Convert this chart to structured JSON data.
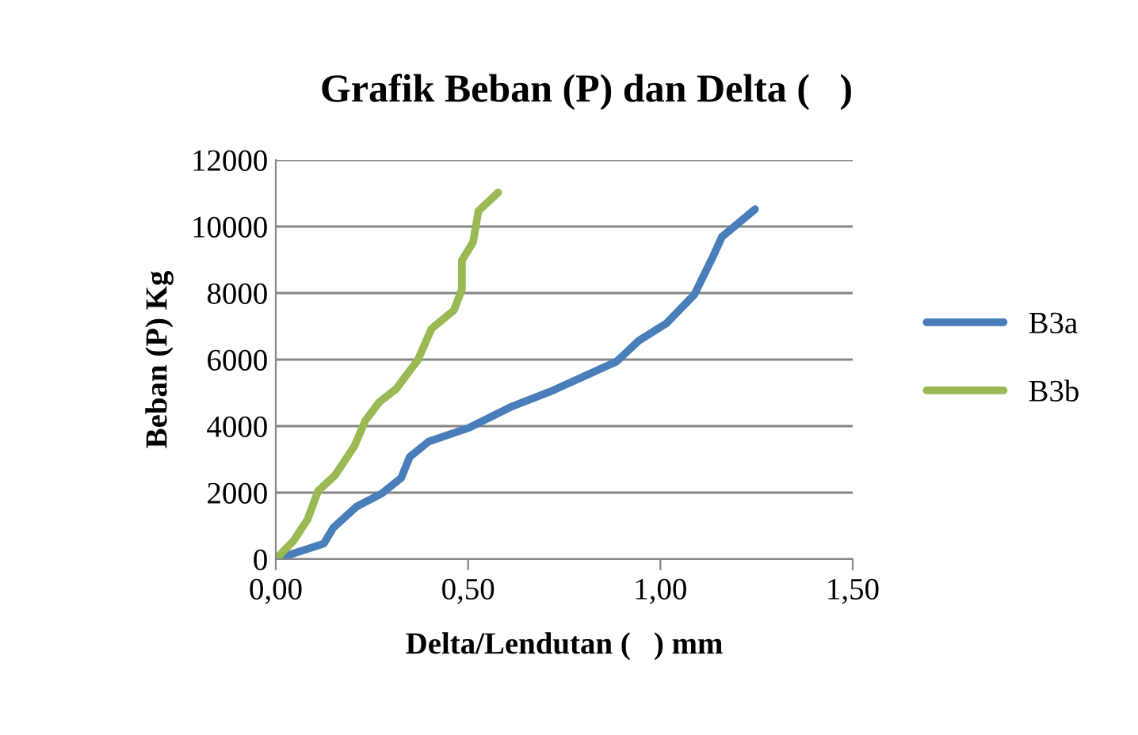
{
  "chart_data": {
    "type": "line",
    "title": "Grafik Beban (P) dan Delta (   )",
    "xlabel": "Delta/Lendutan (   ) mm",
    "ylabel": "Beban (P) Kg",
    "xlim": [
      0,
      1.5
    ],
    "xticks": [
      {
        "value": 0,
        "label": "0,00"
      },
      {
        "value": 0.5,
        "label": "0,50"
      },
      {
        "value": 1.0,
        "label": "1,00"
      },
      {
        "value": 1.5,
        "label": "1,50"
      }
    ],
    "ylim": [
      0,
      12000
    ],
    "yticks": [
      0,
      2000,
      4000,
      6000,
      8000,
      10000,
      12000
    ],
    "grid": "y",
    "legend": "right",
    "marker": "none",
    "line_style": "solid",
    "series": [
      {
        "name": "B3a",
        "color": "#4a7ebb",
        "x": [
          0,
          0.125,
          0.15,
          0.21,
          0.275,
          0.326,
          0.348,
          0.398,
          0.5,
          0.61,
          0.714,
          0.886,
          0.944,
          1.016,
          1.088,
          1.138,
          1.16,
          1.246
        ],
        "values": [
          0,
          470,
          950,
          1580,
          1970,
          2440,
          3070,
          3540,
          3940,
          4570,
          5040,
          5940,
          6570,
          7090,
          7950,
          9130,
          9690,
          10520
        ]
      },
      {
        "name": "B3b",
        "color": "#98b954",
        "x": [
          0,
          0.046,
          0.082,
          0.11,
          0.154,
          0.204,
          0.233,
          0.269,
          0.313,
          0.369,
          0.405,
          0.463,
          0.484,
          0.484,
          0.513,
          0.527,
          0.578
        ],
        "values": [
          0,
          550,
          1180,
          2050,
          2520,
          3390,
          4170,
          4720,
          5120,
          5980,
          6930,
          7480,
          8110,
          8980,
          9530,
          10470,
          11020
        ]
      }
    ]
  }
}
